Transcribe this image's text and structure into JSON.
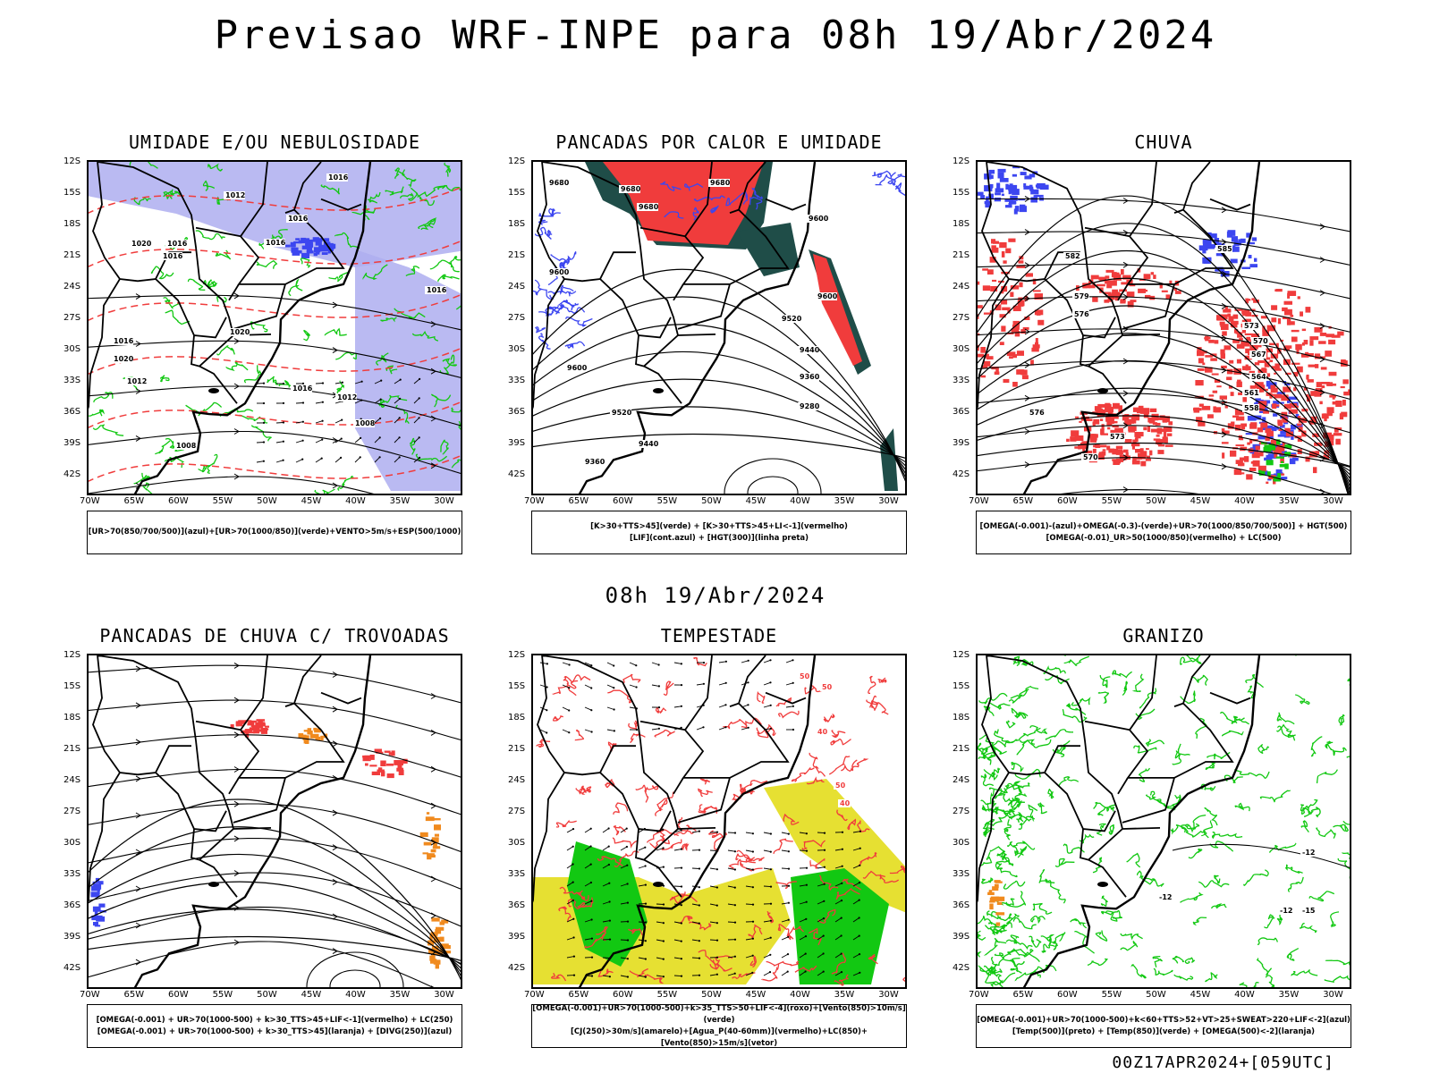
{
  "header": {
    "title": "Previsao WRF-INPE  para 08h 19/Abr/2024"
  },
  "middle": {
    "title": "08h 19/Abr/2024"
  },
  "footer": {
    "run": "00Z17APR2024+[059UTC]"
  },
  "axes": {
    "lat_labels": [
      "12S",
      "15S",
      "18S",
      "21S",
      "24S",
      "27S",
      "30S",
      "33S",
      "36S",
      "39S",
      "42S"
    ],
    "lon_labels": [
      "70W",
      "65W",
      "60W",
      "55W",
      "50W",
      "45W",
      "40W",
      "35W",
      "30W"
    ]
  },
  "colors": {
    "blue": "#3c46f0",
    "lavender": "#aeaef0",
    "green": "#12c812",
    "red": "#f03c3c",
    "dark_teal": "#1f4d48",
    "yellow": "#e6e032",
    "orange": "#f08a1e",
    "contour": "#000000"
  },
  "panels": [
    {
      "title": "UMIDADE E/OU NEBULOSIDADE",
      "legend": [
        "[UR>70(850/700/500)](azul)+[UR>70(1000/850)](verde)+VENTO>5m/s+ESP(500/1000)"
      ],
      "contour_labels": [
        "1016",
        "1012",
        "1016",
        "1016",
        "1020",
        "1016",
        "1016",
        "1020",
        "1016",
        "1020",
        "1012",
        "1016",
        "1012",
        "1008",
        "1008",
        "1016"
      ]
    },
    {
      "title": "PANCADAS POR CALOR E UMIDADE",
      "legend": [
        "[K>30+TTS>45](verde) + [K>30+TTS>45+LI<-1](vermelho)",
        "[LIF](cont.azul) + [HGT(300)](linha preta)"
      ],
      "contour_labels": [
        "9680",
        "9680",
        "9680",
        "9680",
        "9600",
        "9600",
        "9600",
        "9520",
        "9440",
        "9360",
        "9280",
        "9600",
        "9520",
        "9440",
        "9360",
        "9280"
      ]
    },
    {
      "title": "CHUVA",
      "legend": [
        "[OMEGA(-0.001)-(azul)+OMEGA(-0.3)-(verde)+UR>70(1000/850/700/500)] + HGT(500)",
        "[OMEGA(-0.01)_UR>50(1000/850)(vermelho) + LC(500)"
      ],
      "contour_labels": [
        "585",
        "582",
        "579",
        "576",
        "573",
        "570",
        "567",
        "564",
        "561",
        "558",
        "576",
        "573",
        "570"
      ]
    },
    {
      "title": "PANCADAS DE CHUVA C/ TROVOADAS",
      "legend": [
        "[OMEGA(-0.001) + UR>70(1000-500) + k>30_TTS>45+LIF<-1](vermelho) + LC(250)",
        "[OMEGA(-0.001) + UR>70(1000-500) + k>30_TTS>45](laranja) + [DIVG(250)](azul)"
      ],
      "contour_labels": []
    },
    {
      "title": "TEMPESTADE",
      "legend": [
        "[OMEGA(-0.001)+UR>70(1000-500)+k>35_TTS>50+LIF<-4](roxo)+[Vento(850)>10m/s](verde)",
        "[CJ(250)>30m/s](amarelo)+[Agua_P(40-60mm)](vermelho)+LC(850)+[Vento(850)>15m/s](vetor)"
      ],
      "contour_labels": [
        "50",
        "50",
        "40",
        "50",
        "40"
      ]
    },
    {
      "title": "GRANIZO",
      "legend": [
        "[OMEGA(-0.001)+UR>70(1000-500)+k<60+TTS>52+VT>25+SWEAT>220+LIF<-2](azul)",
        "[Temp(500)](preto) + [Temp(850)](verde) + [OMEGA(500)<-2](laranja)"
      ],
      "contour_labels": [
        "-12",
        "-12",
        "-15",
        "-12",
        "15"
      ]
    }
  ]
}
